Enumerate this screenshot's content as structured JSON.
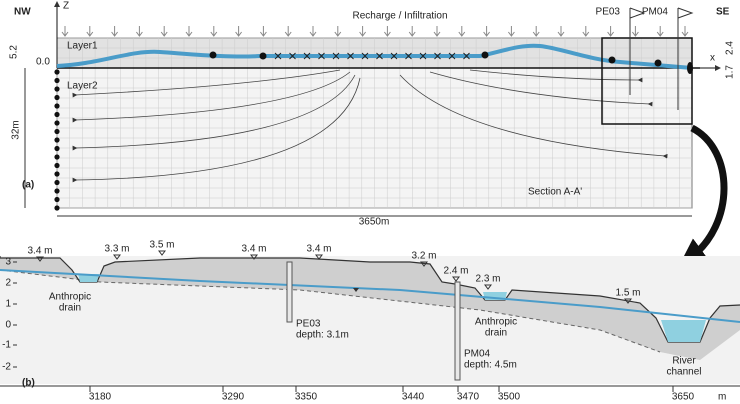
{
  "panel_a": {
    "label": "(a)",
    "orientation_left": "NW",
    "orientation_right": "SE",
    "z_axis": "Z",
    "x_axis": "x",
    "recharge": "Recharge / Infiltration",
    "layer1": "Layer1",
    "layer2": "Layer2",
    "wells": [
      "PE03",
      "PM04"
    ],
    "left_dims": [
      "5.2",
      "0.0",
      "32m"
    ],
    "right_dims": [
      "2.4",
      "1.7"
    ],
    "section": "Section A-A'",
    "length": "3650m"
  },
  "panel_b": {
    "label": "(b)",
    "surface_levels": [
      "3.4 m",
      "3.3 m",
      "3.5 m",
      "3.4 m",
      "3.4 m",
      "3.2 m",
      "2.4 m",
      "2.3 m",
      "1.5 m"
    ],
    "drain_left": [
      "Anthropic",
      "drain"
    ],
    "drain_right": [
      "Anthropic",
      "drain"
    ],
    "river": [
      "River",
      "channel"
    ],
    "wells": [
      {
        "name": "PE03",
        "depth": "depth: 3.1m"
      },
      {
        "name": "PM04",
        "depth": "depth: 4.5m"
      }
    ],
    "yticks": [
      "3",
      "2",
      "1",
      "0",
      "-1",
      "-2"
    ],
    "xticks": [
      "3180",
      "3290",
      "3350",
      "3440",
      "3470",
      "3500",
      "3650"
    ],
    "x_unit": "m"
  }
}
